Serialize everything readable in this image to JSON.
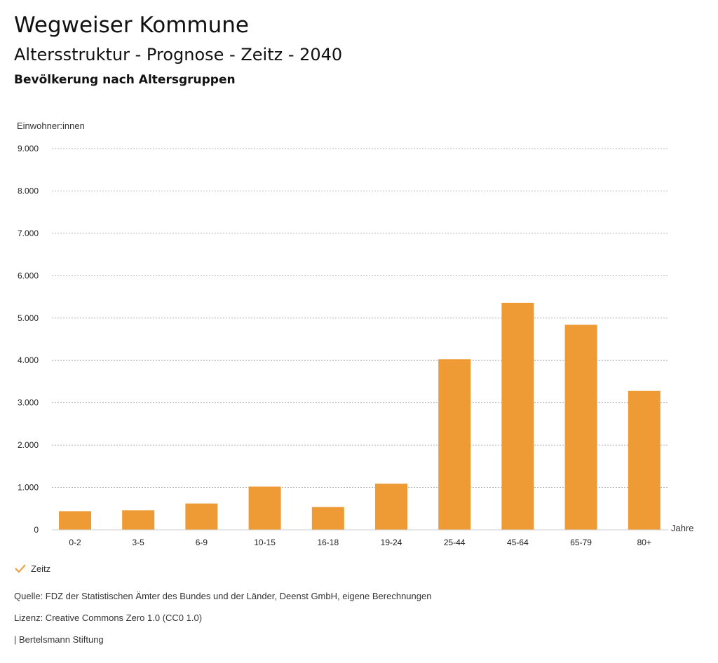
{
  "header": {
    "title": "Wegweiser Kommune",
    "subtitle": "Altersstruktur - Prognose - Zeitz - 2040",
    "chart_heading": "Bevölkerung nach Altersgruppen"
  },
  "chart_data": {
    "type": "bar",
    "title": "Bevölkerung nach Altersgruppen",
    "ylabel": "Einwohner:innen",
    "xlabel": "Jahre",
    "categories": [
      "0-2",
      "3-5",
      "6-9",
      "10-15",
      "16-18",
      "19-24",
      "25-44",
      "45-64",
      "65-79",
      "80+"
    ],
    "series": [
      {
        "name": "Zeitz",
        "values": [
          440,
          460,
          620,
          1020,
          540,
          1090,
          4030,
          5360,
          4840,
          3280
        ]
      }
    ],
    "ylim": [
      0,
      9000
    ],
    "yticks": [
      0,
      1000,
      2000,
      3000,
      4000,
      5000,
      6000,
      7000,
      8000,
      9000
    ],
    "ytick_labels": [
      "0",
      "1.000",
      "2.000",
      "3.000",
      "4.000",
      "5.000",
      "6.000",
      "7.000",
      "8.000",
      "9.000"
    ],
    "grid": true,
    "bar_color": "#ee9a35"
  },
  "legend": {
    "label": "Zeitz",
    "color": "#ee9a35"
  },
  "footer": {
    "source": "Quelle: FDZ der Statistischen Ämter des Bundes und der Länder, Deenst GmbH, eigene Berechnungen",
    "license": "Lizenz: Creative Commons Zero 1.0 (CC0 1.0)",
    "publisher": "| Bertelsmann Stiftung"
  }
}
